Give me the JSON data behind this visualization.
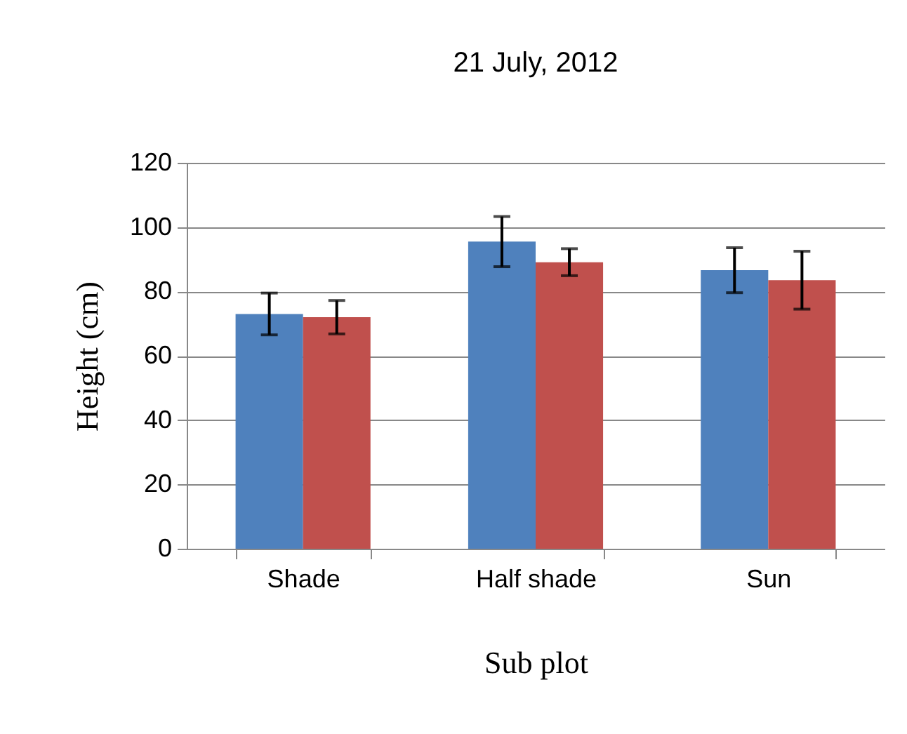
{
  "chart_data": {
    "type": "bar",
    "title": "21 July, 2012",
    "xlabel": "Sub plot",
    "ylabel": "Height (cm)",
    "categories": [
      "Shade",
      "Half shade",
      "Sun"
    ],
    "series": [
      {
        "color": "#4f81bd",
        "values": [
          73,
          95.5,
          86.6
        ],
        "errors": [
          6.5,
          7.8,
          7
        ]
      },
      {
        "color": "#c0504d",
        "values": [
          72,
          89.1,
          83.5
        ],
        "errors": [
          5.2,
          4.2,
          9
        ]
      }
    ],
    "ylim": [
      0,
      120
    ],
    "yticks": [
      0,
      20,
      40,
      60,
      80,
      100,
      120
    ],
    "grid": "y",
    "legend": false
  }
}
